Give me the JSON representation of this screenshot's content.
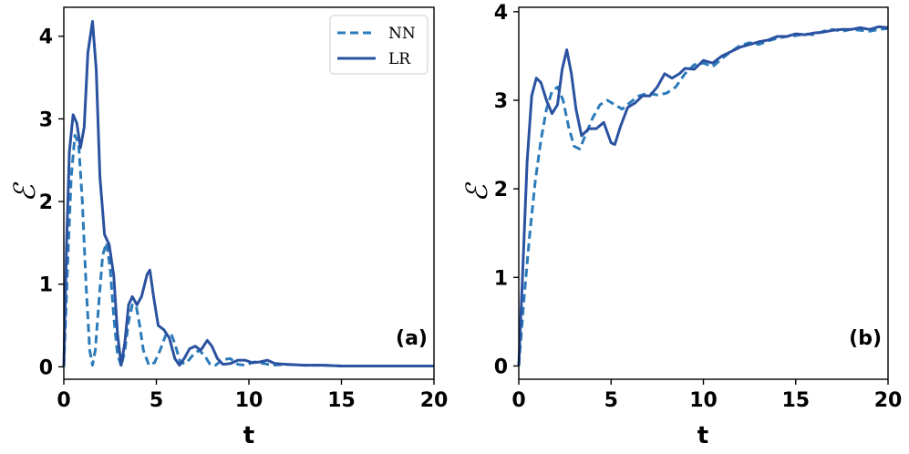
{
  "chart_data": [
    {
      "type": "line",
      "panel_label": "(a)",
      "xlabel": "t",
      "ylabel": "ℰ",
      "xlim": [
        0,
        20
      ],
      "ylim": [
        -0.15,
        4.35
      ],
      "xticks": [
        0,
        5,
        10,
        15,
        20
      ],
      "yticks": [
        0,
        1,
        2,
        3,
        4
      ],
      "grid": false,
      "legend": "top-right",
      "series": [
        {
          "name": "NN",
          "style": "dashed",
          "color": "#2b7bba",
          "points": [
            [
              0,
              0
            ],
            [
              0.2,
              1.2
            ],
            [
              0.4,
              2.3
            ],
            [
              0.6,
              2.8
            ],
            [
              0.8,
              2.7
            ],
            [
              1.0,
              2.0
            ],
            [
              1.2,
              1.0
            ],
            [
              1.4,
              0.2
            ],
            [
              1.55,
              0.02
            ],
            [
              1.7,
              0.2
            ],
            [
              1.9,
              0.8
            ],
            [
              2.1,
              1.35
            ],
            [
              2.3,
              1.5
            ],
            [
              2.5,
              1.2
            ],
            [
              2.7,
              0.6
            ],
            [
              2.9,
              0.15
            ],
            [
              3.1,
              0.01
            ],
            [
              3.3,
              0.2
            ],
            [
              3.5,
              0.55
            ],
            [
              3.7,
              0.75
            ],
            [
              3.9,
              0.75
            ],
            [
              4.1,
              0.5
            ],
            [
              4.3,
              0.2
            ],
            [
              4.6,
              0.02
            ],
            [
              4.9,
              0.05
            ],
            [
              5.2,
              0.2
            ],
            [
              5.5,
              0.38
            ],
            [
              5.8,
              0.4
            ],
            [
              6.0,
              0.28
            ],
            [
              6.3,
              0.05
            ],
            [
              6.6,
              0.04
            ],
            [
              7.0,
              0.15
            ],
            [
              7.3,
              0.2
            ],
            [
              7.6,
              0.14
            ],
            [
              7.9,
              0.03
            ],
            [
              8.2,
              0.02
            ],
            [
              8.6,
              0.09
            ],
            [
              9.0,
              0.1
            ],
            [
              9.4,
              0.03
            ],
            [
              9.8,
              0.02
            ],
            [
              10.3,
              0.06
            ],
            [
              10.8,
              0.04
            ],
            [
              11.3,
              0.02
            ],
            [
              12.0,
              0.03
            ],
            [
              13.0,
              0.02
            ],
            [
              14.0,
              0.02
            ],
            [
              15.0,
              0.01
            ],
            [
              16.0,
              0.01
            ],
            [
              18.0,
              0.01
            ],
            [
              20.0,
              0.01
            ]
          ]
        },
        {
          "name": "LR",
          "style": "solid",
          "color": "#2a52a0",
          "points": [
            [
              0,
              0
            ],
            [
              0.15,
              1.5
            ],
            [
              0.3,
              2.6
            ],
            [
              0.5,
              3.05
            ],
            [
              0.7,
              2.95
            ],
            [
              0.9,
              2.65
            ],
            [
              1.1,
              2.9
            ],
            [
              1.3,
              3.8
            ],
            [
              1.55,
              4.18
            ],
            [
              1.75,
              3.6
            ],
            [
              1.95,
              2.3
            ],
            [
              2.2,
              1.6
            ],
            [
              2.45,
              1.48
            ],
            [
              2.7,
              1.1
            ],
            [
              2.9,
              0.4
            ],
            [
              3.1,
              0.02
            ],
            [
              3.3,
              0.3
            ],
            [
              3.5,
              0.75
            ],
            [
              3.7,
              0.85
            ],
            [
              3.95,
              0.75
            ],
            [
              4.2,
              0.85
            ],
            [
              4.5,
              1.12
            ],
            [
              4.65,
              1.17
            ],
            [
              4.85,
              0.85
            ],
            [
              5.1,
              0.5
            ],
            [
              5.4,
              0.45
            ],
            [
              5.7,
              0.35
            ],
            [
              6.0,
              0.1
            ],
            [
              6.25,
              0.02
            ],
            [
              6.5,
              0.1
            ],
            [
              6.8,
              0.22
            ],
            [
              7.1,
              0.25
            ],
            [
              7.4,
              0.2
            ],
            [
              7.75,
              0.32
            ],
            [
              8.0,
              0.25
            ],
            [
              8.3,
              0.1
            ],
            [
              8.6,
              0.03
            ],
            [
              9.0,
              0.04
            ],
            [
              9.4,
              0.08
            ],
            [
              9.8,
              0.08
            ],
            [
              10.2,
              0.05
            ],
            [
              10.6,
              0.06
            ],
            [
              11.0,
              0.08
            ],
            [
              11.4,
              0.04
            ],
            [
              12.0,
              0.03
            ],
            [
              13.0,
              0.02
            ],
            [
              14.0,
              0.02
            ],
            [
              15.0,
              0.01
            ],
            [
              16.0,
              0.01
            ],
            [
              18.0,
              0.01
            ],
            [
              20.0,
              0.01
            ]
          ]
        }
      ]
    },
    {
      "type": "line",
      "panel_label": "(b)",
      "xlabel": "t",
      "ylabel": "ℰ",
      "xlim": [
        0,
        20
      ],
      "ylim": [
        -0.15,
        4.05
      ],
      "xticks": [
        0,
        5,
        10,
        15,
        20
      ],
      "yticks": [
        0,
        1,
        2,
        3,
        4
      ],
      "grid": false,
      "series": [
        {
          "name": "NN",
          "style": "dashed",
          "color": "#2b7bba",
          "points": [
            [
              0,
              0
            ],
            [
              0.3,
              0.8
            ],
            [
              0.6,
              1.5
            ],
            [
              0.9,
              2.1
            ],
            [
              1.2,
              2.55
            ],
            [
              1.5,
              2.9
            ],
            [
              1.8,
              3.1
            ],
            [
              2.1,
              3.15
            ],
            [
              2.4,
              3.0
            ],
            [
              2.7,
              2.7
            ],
            [
              3.0,
              2.48
            ],
            [
              3.3,
              2.45
            ],
            [
              3.6,
              2.6
            ],
            [
              4.0,
              2.8
            ],
            [
              4.4,
              2.95
            ],
            [
              4.8,
              3.0
            ],
            [
              5.2,
              2.95
            ],
            [
              5.6,
              2.9
            ],
            [
              6.0,
              2.97
            ],
            [
              6.5,
              3.05
            ],
            [
              7.0,
              3.08
            ],
            [
              7.5,
              3.06
            ],
            [
              8.0,
              3.08
            ],
            [
              8.5,
              3.15
            ],
            [
              9.0,
              3.3
            ],
            [
              9.5,
              3.4
            ],
            [
              10.0,
              3.42
            ],
            [
              10.5,
              3.38
            ],
            [
              11.0,
              3.47
            ],
            [
              11.5,
              3.55
            ],
            [
              12.0,
              3.62
            ],
            [
              12.5,
              3.65
            ],
            [
              13.0,
              3.63
            ],
            [
              13.5,
              3.67
            ],
            [
              14.0,
              3.7
            ],
            [
              14.5,
              3.72
            ],
            [
              15.0,
              3.73
            ],
            [
              15.5,
              3.75
            ],
            [
              16.0,
              3.74
            ],
            [
              16.5,
              3.78
            ],
            [
              17.0,
              3.8
            ],
            [
              17.5,
              3.78
            ],
            [
              18.0,
              3.8
            ],
            [
              18.5,
              3.79
            ],
            [
              19.0,
              3.78
            ],
            [
              19.5,
              3.8
            ],
            [
              20.0,
              3.81
            ]
          ]
        },
        {
          "name": "LR",
          "style": "solid",
          "color": "#2a52a0",
          "points": [
            [
              0,
              0
            ],
            [
              0.2,
              1.0
            ],
            [
              0.45,
              2.3
            ],
            [
              0.7,
              3.05
            ],
            [
              0.95,
              3.25
            ],
            [
              1.2,
              3.2
            ],
            [
              1.5,
              3.0
            ],
            [
              1.8,
              2.85
            ],
            [
              2.1,
              2.95
            ],
            [
              2.35,
              3.35
            ],
            [
              2.6,
              3.57
            ],
            [
              2.85,
              3.3
            ],
            [
              3.1,
              2.9
            ],
            [
              3.4,
              2.6
            ],
            [
              3.8,
              2.68
            ],
            [
              4.2,
              2.68
            ],
            [
              4.6,
              2.75
            ],
            [
              5.0,
              2.52
            ],
            [
              5.2,
              2.5
            ],
            [
              5.5,
              2.7
            ],
            [
              5.9,
              2.92
            ],
            [
              6.3,
              2.97
            ],
            [
              6.7,
              3.05
            ],
            [
              7.1,
              3.05
            ],
            [
              7.5,
              3.15
            ],
            [
              7.9,
              3.3
            ],
            [
              8.3,
              3.25
            ],
            [
              8.7,
              3.3
            ],
            [
              9.0,
              3.36
            ],
            [
              9.5,
              3.35
            ],
            [
              10.0,
              3.45
            ],
            [
              10.5,
              3.42
            ],
            [
              11.0,
              3.5
            ],
            [
              11.5,
              3.55
            ],
            [
              12.0,
              3.6
            ],
            [
              12.5,
              3.63
            ],
            [
              13.0,
              3.66
            ],
            [
              13.5,
              3.68
            ],
            [
              14.0,
              3.72
            ],
            [
              14.5,
              3.72
            ],
            [
              15.0,
              3.75
            ],
            [
              15.5,
              3.74
            ],
            [
              16.0,
              3.76
            ],
            [
              16.5,
              3.77
            ],
            [
              17.0,
              3.79
            ],
            [
              17.5,
              3.8
            ],
            [
              18.0,
              3.8
            ],
            [
              18.5,
              3.82
            ],
            [
              19.0,
              3.8
            ],
            [
              19.5,
              3.83
            ],
            [
              20.0,
              3.82
            ]
          ]
        }
      ]
    }
  ]
}
